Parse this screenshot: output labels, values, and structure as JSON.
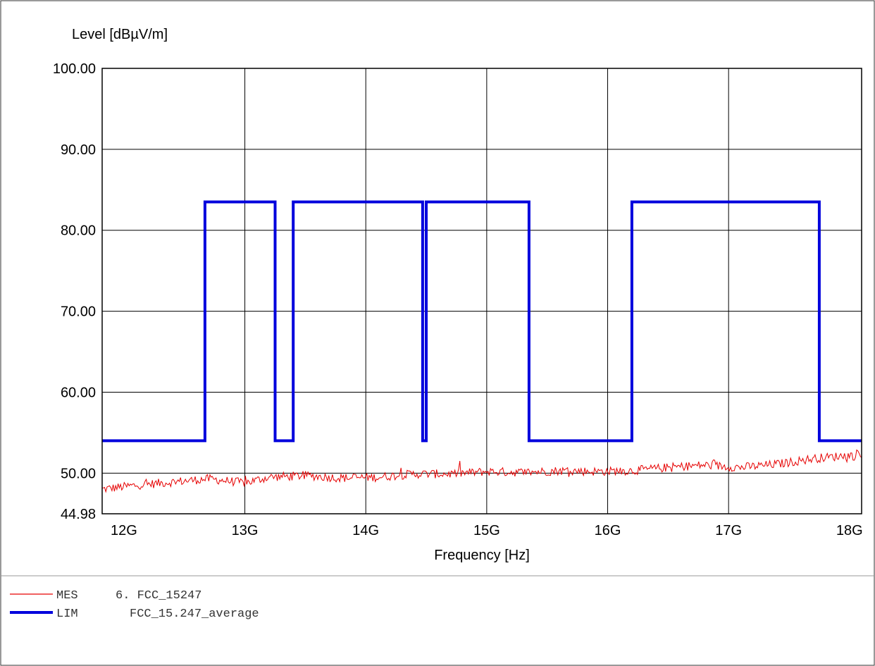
{
  "chart_data": {
    "type": "line",
    "title": "",
    "ylabel": "Level [dBµV/m]",
    "xlabel": "Frequency [Hz]",
    "xlim_ghz": [
      11.82,
      18.1
    ],
    "ylim": [
      44.98,
      100.0
    ],
    "y_ticks": [
      {
        "value": 100.0,
        "label": "100.00"
      },
      {
        "value": 90.0,
        "label": "90.00"
      },
      {
        "value": 80.0,
        "label": "80.00"
      },
      {
        "value": 70.0,
        "label": "70.00"
      },
      {
        "value": 60.0,
        "label": "60.00"
      },
      {
        "value": 50.0,
        "label": "50.00"
      },
      {
        "value": 44.98,
        "label": "44.98"
      }
    ],
    "x_ticks": [
      {
        "value": 12,
        "label": "12G"
      },
      {
        "value": 13,
        "label": "13G"
      },
      {
        "value": 14,
        "label": "14G"
      },
      {
        "value": 15,
        "label": "15G"
      },
      {
        "value": 16,
        "label": "16G"
      },
      {
        "value": 17,
        "label": "17G"
      },
      {
        "value": 18,
        "label": "18G"
      }
    ],
    "y_grid": [
      50,
      60,
      70,
      80,
      90,
      100
    ],
    "x_grid": [
      13,
      14,
      15,
      16,
      17
    ],
    "grid": true,
    "series": [
      {
        "name": "MES   6. FCC_15247",
        "color": "#e60000",
        "x_ghz": [
          11.82,
          12.1,
          12.4,
          12.7,
          13.0,
          13.2,
          13.5,
          13.8,
          14.1,
          14.4,
          14.7,
          15.0,
          15.3,
          15.6,
          15.9,
          16.2,
          16.5,
          16.8,
          17.1,
          17.4,
          17.7,
          18.0,
          18.1
        ],
        "y": [
          48.0,
          48.5,
          48.9,
          49.3,
          48.8,
          49.5,
          49.7,
          49.4,
          49.5,
          49.9,
          49.9,
          50.2,
          50.1,
          50.3,
          50.2,
          50.3,
          50.7,
          51.0,
          50.7,
          51.1,
          51.8,
          52.2,
          52.0
        ]
      },
      {
        "name": "LIM   FCC_15.247_average",
        "color": "#0000dd",
        "x_ghz": [
          11.82,
          12.67,
          12.67,
          13.25,
          13.25,
          13.4,
          13.4,
          14.47,
          14.47,
          14.5,
          14.5,
          15.35,
          15.35,
          16.2,
          16.2,
          17.75,
          17.75,
          18.1
        ],
        "y": [
          54.0,
          54.0,
          83.5,
          83.5,
          54.0,
          54.0,
          83.5,
          83.5,
          54.0,
          54.0,
          83.5,
          83.5,
          54.0,
          54.0,
          83.5,
          83.5,
          54.0,
          54.0
        ]
      }
    ]
  },
  "legend": [
    {
      "abbr": "MES",
      "text": "6. FCC_15247",
      "color": "#e60000"
    },
    {
      "abbr": "LIM",
      "text": "FCC_15.247_average",
      "color": "#0000dd"
    }
  ]
}
